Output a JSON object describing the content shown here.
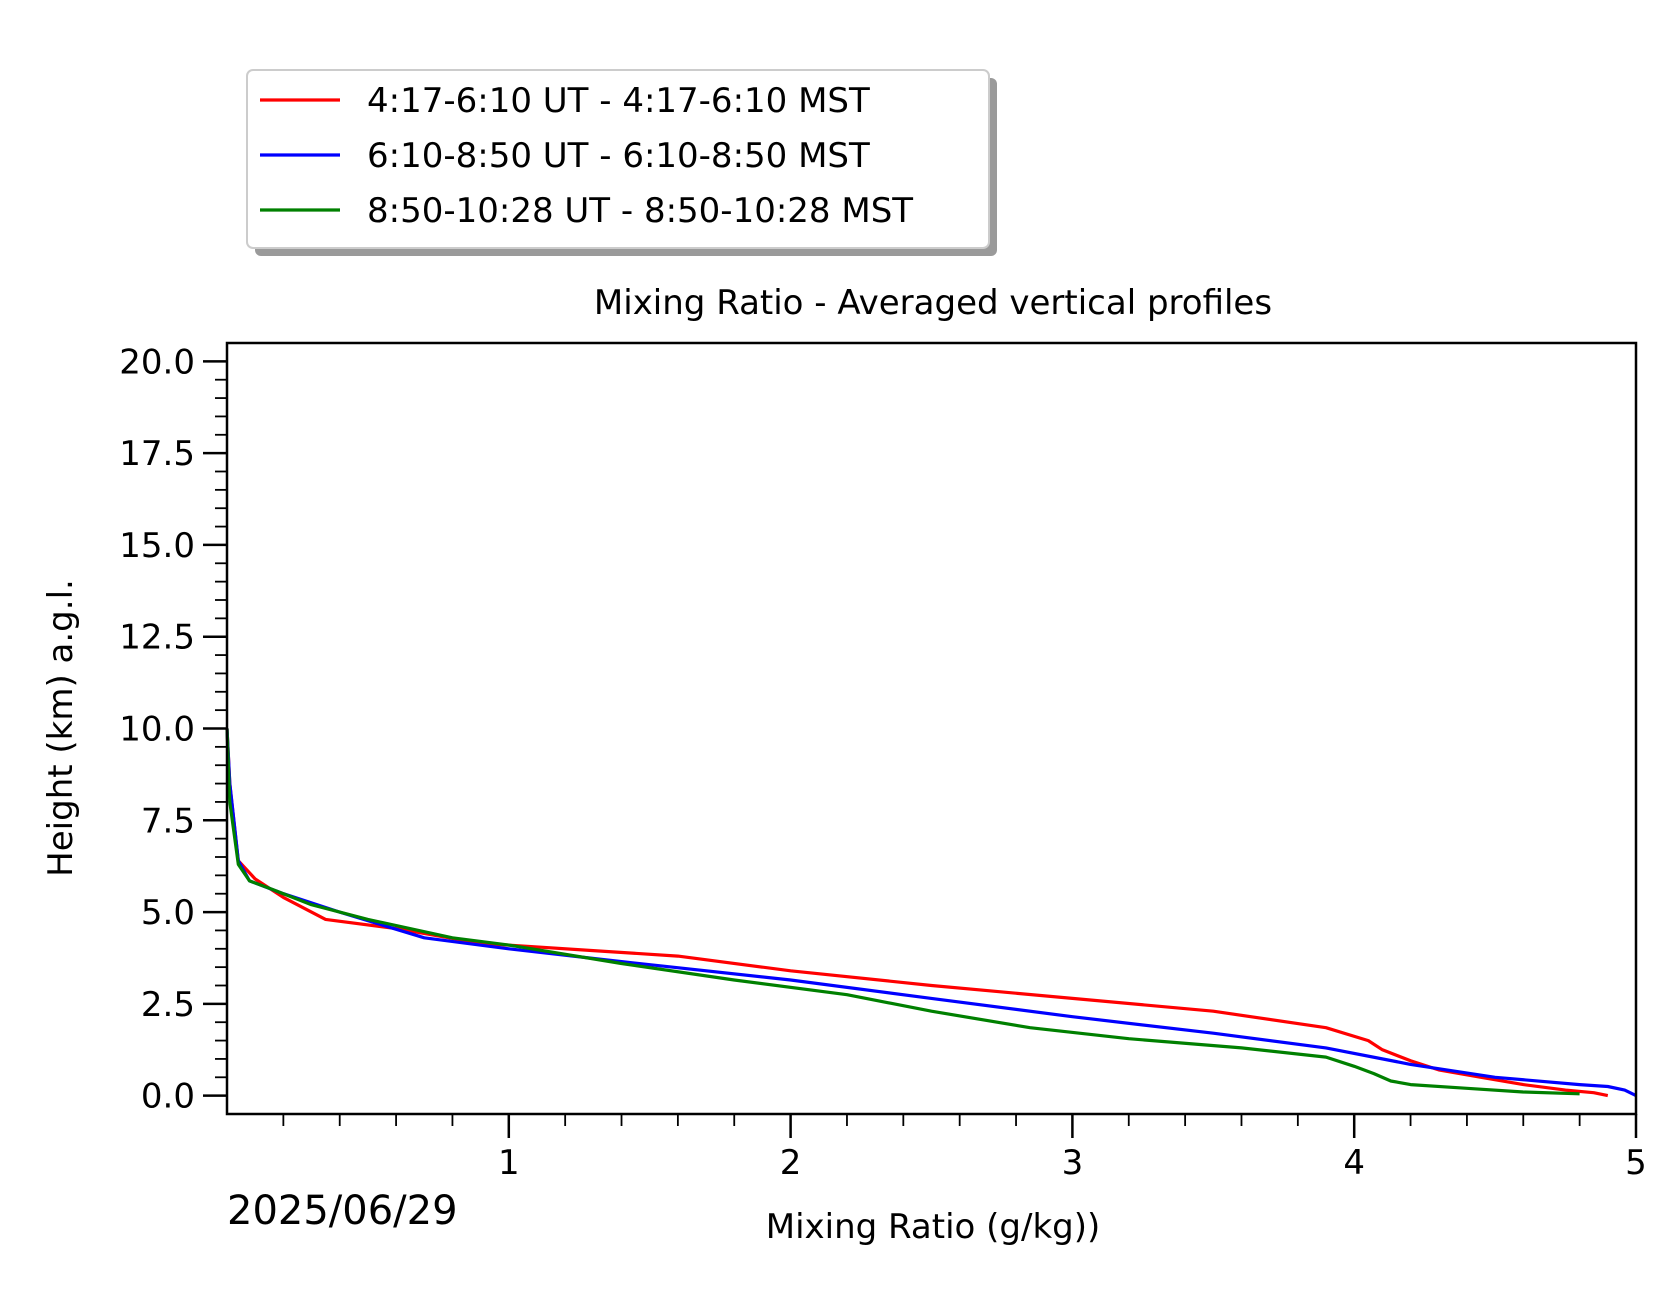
{
  "chart_data": {
    "type": "line",
    "title": "Mixing Ratio - Averaged vertical profiles",
    "xlabel": "Mixing Ratio (g/kg))",
    "ylabel": "Height (km) a.g.l.",
    "date_label": "2025/06/29",
    "xlim": [
      0,
      5
    ],
    "ylim": [
      -0.5,
      20.5
    ],
    "x_ticks": [
      1,
      2,
      3,
      4,
      5
    ],
    "x_tick_labels": [
      "1",
      "2",
      "3",
      "4",
      "5"
    ],
    "y_ticks": [
      0,
      2.5,
      5,
      7.5,
      10,
      12.5,
      15,
      17.5,
      20
    ],
    "y_tick_labels": [
      "0.0",
      "2.5",
      "5.0",
      "7.5",
      "10.0",
      "12.5",
      "15.0",
      "17.5",
      "20.0"
    ],
    "grid": false,
    "legend_position": "above-left",
    "series": [
      {
        "name": "4:17-6:10 UT - 4:17-6:10 MST",
        "color": "#ff0000",
        "points": [
          [
            0.0,
            10.0
          ],
          [
            0.01,
            8.5
          ],
          [
            0.04,
            6.4
          ],
          [
            0.1,
            5.9
          ],
          [
            0.2,
            5.4
          ],
          [
            0.35,
            4.8
          ],
          [
            0.6,
            4.55
          ],
          [
            0.9,
            4.15
          ],
          [
            1.3,
            3.95
          ],
          [
            1.6,
            3.8
          ],
          [
            2.0,
            3.4
          ],
          [
            2.5,
            3.0
          ],
          [
            3.0,
            2.65
          ],
          [
            3.5,
            2.3
          ],
          [
            3.9,
            1.85
          ],
          [
            4.05,
            1.5
          ],
          [
            4.1,
            1.25
          ],
          [
            4.2,
            0.95
          ],
          [
            4.3,
            0.7
          ],
          [
            4.45,
            0.5
          ],
          [
            4.6,
            0.3
          ],
          [
            4.75,
            0.15
          ],
          [
            4.85,
            0.08
          ],
          [
            4.9,
            0.0
          ]
        ]
      },
      {
        "name": "6:10-8:50 UT - 6:10-8:50 MST",
        "color": "#0000ff",
        "points": [
          [
            0.0,
            10.0
          ],
          [
            0.01,
            8.5
          ],
          [
            0.04,
            6.4
          ],
          [
            0.08,
            5.85
          ],
          [
            0.2,
            5.5
          ],
          [
            0.4,
            5.0
          ],
          [
            0.7,
            4.3
          ],
          [
            1.0,
            4.0
          ],
          [
            1.4,
            3.65
          ],
          [
            2.0,
            3.15
          ],
          [
            2.5,
            2.65
          ],
          [
            3.0,
            2.15
          ],
          [
            3.5,
            1.7
          ],
          [
            3.9,
            1.3
          ],
          [
            4.2,
            0.85
          ],
          [
            4.5,
            0.5
          ],
          [
            4.8,
            0.3
          ],
          [
            4.9,
            0.25
          ],
          [
            4.96,
            0.15
          ],
          [
            5.0,
            0.0
          ]
        ]
      },
      {
        "name": "8:50-10:28 UT - 8:50-10:28 MST",
        "color": "#008000",
        "points": [
          [
            0.0,
            10.0
          ],
          [
            0.01,
            8.0
          ],
          [
            0.04,
            6.3
          ],
          [
            0.08,
            5.85
          ],
          [
            0.15,
            5.65
          ],
          [
            0.3,
            5.2
          ],
          [
            0.5,
            4.8
          ],
          [
            0.8,
            4.3
          ],
          [
            1.0,
            4.1
          ],
          [
            1.4,
            3.6
          ],
          [
            1.8,
            3.15
          ],
          [
            2.2,
            2.75
          ],
          [
            2.5,
            2.3
          ],
          [
            2.85,
            1.85
          ],
          [
            3.2,
            1.55
          ],
          [
            3.6,
            1.3
          ],
          [
            3.9,
            1.05
          ],
          [
            4.0,
            0.8
          ],
          [
            4.07,
            0.6
          ],
          [
            4.13,
            0.4
          ],
          [
            4.2,
            0.3
          ],
          [
            4.4,
            0.2
          ],
          [
            4.6,
            0.1
          ],
          [
            4.8,
            0.05
          ]
        ]
      }
    ]
  }
}
